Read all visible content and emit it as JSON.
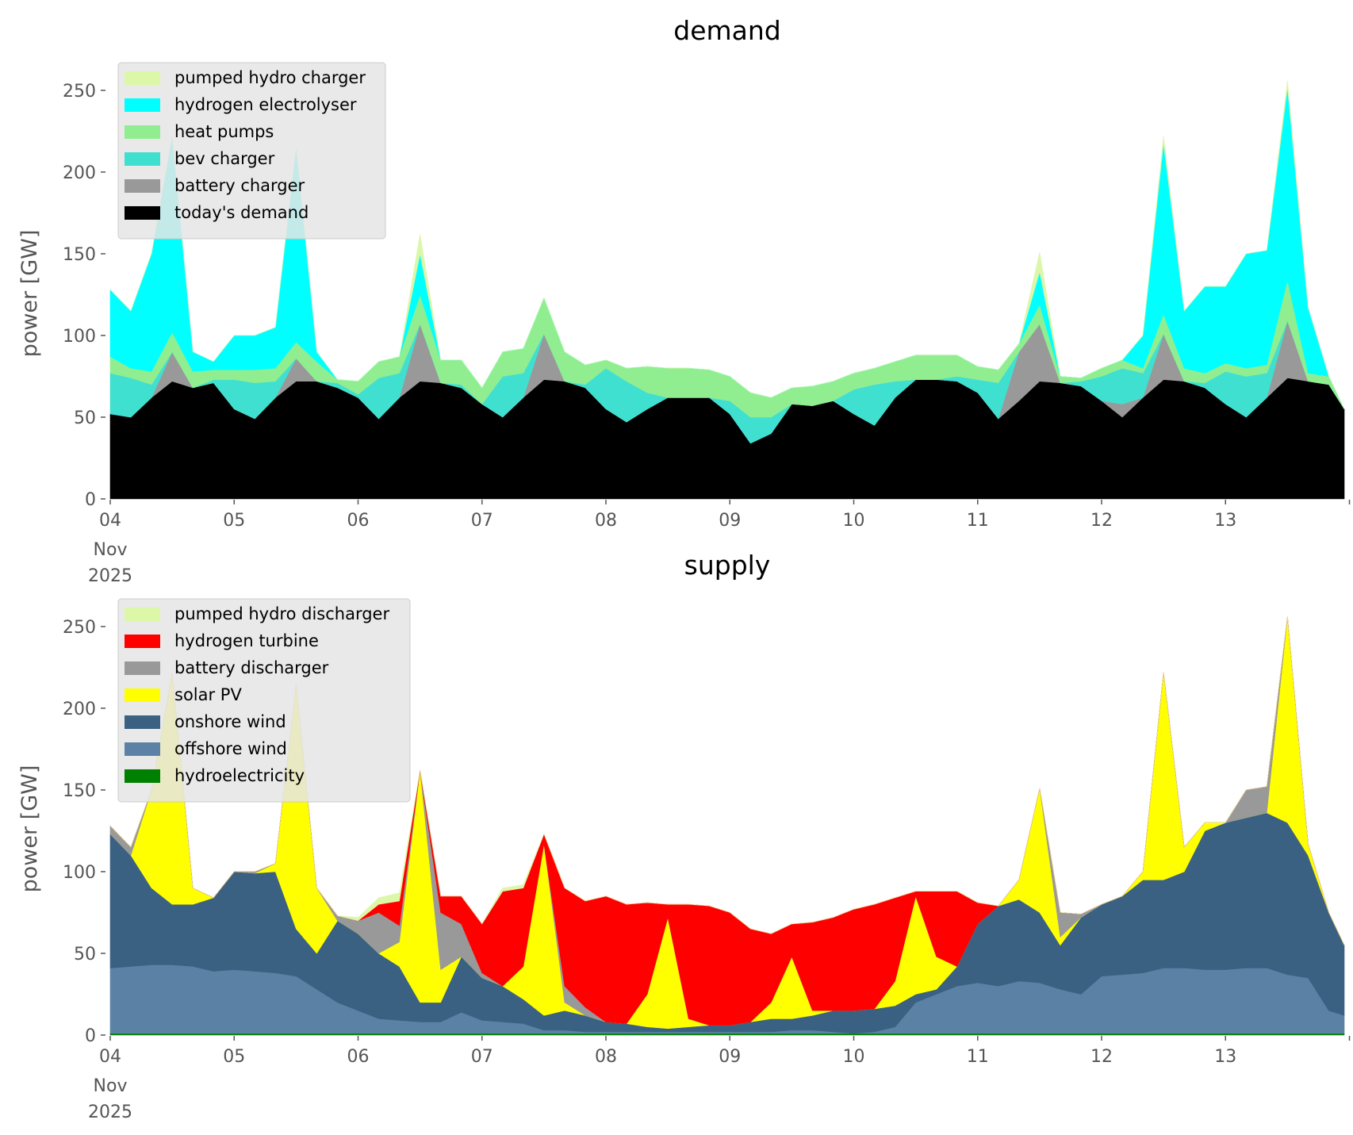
{
  "chart_data": [
    {
      "type": "area",
      "stacked": true,
      "title": "demand",
      "xlabel": "",
      "ylabel": "power [GW]",
      "ylim": [
        0,
        265
      ],
      "yticks": [
        0,
        50,
        100,
        150,
        200,
        250
      ],
      "xlim_hours": [
        0,
        239
      ],
      "xticks": [
        "04",
        "05",
        "06",
        "07",
        "08",
        "09",
        "10",
        "11",
        "12",
        "13",
        ""
      ],
      "xtick_sublabels": [
        "Nov",
        "2025"
      ],
      "grid": false,
      "legend": "top-left",
      "hours": [
        0,
        4,
        8,
        12,
        16,
        20,
        24,
        28,
        32,
        36,
        40,
        44,
        48,
        52,
        56,
        60,
        64,
        68,
        72,
        76,
        80,
        84,
        88,
        92,
        96,
        100,
        104,
        108,
        112,
        116,
        120,
        124,
        128,
        132,
        136,
        140,
        144,
        148,
        152,
        156,
        160,
        164,
        168,
        172,
        176,
        180,
        184,
        188,
        192,
        196,
        200,
        204,
        208,
        212,
        216,
        220,
        224,
        228,
        232,
        236,
        239
      ],
      "series": [
        {
          "name": "today's demand",
          "color": "#000000",
          "values": [
            52,
            50,
            62,
            72,
            68,
            71,
            55,
            49,
            62,
            72,
            72,
            68,
            62,
            49,
            62,
            72,
            71,
            68,
            58,
            50,
            62,
            73,
            72,
            68,
            55,
            47,
            55,
            62,
            62,
            62,
            52,
            34,
            40,
            58,
            57,
            60,
            52,
            45,
            62,
            73,
            73,
            72,
            65,
            49,
            60,
            72,
            71,
            69,
            60,
            50,
            62,
            73,
            72,
            68,
            58,
            50,
            62,
            74,
            72,
            70,
            55
          ]
        },
        {
          "name": "battery charger",
          "color": "#999999",
          "values": [
            0,
            0,
            0,
            18,
            0,
            0,
            0,
            0,
            0,
            14,
            0,
            0,
            0,
            0,
            0,
            35,
            0,
            0,
            0,
            0,
            0,
            28,
            0,
            0,
            0,
            0,
            0,
            0,
            0,
            0,
            0,
            0,
            0,
            0,
            0,
            0,
            0,
            0,
            0,
            0,
            0,
            0,
            0,
            0,
            30,
            35,
            0,
            0,
            0,
            8,
            0,
            28,
            0,
            0,
            0,
            0,
            0,
            35,
            0,
            0,
            0
          ]
        },
        {
          "name": "bev charger",
          "color": "#40e0d0",
          "values": [
            25,
            24,
            8,
            0,
            0,
            2,
            18,
            22,
            10,
            0,
            0,
            3,
            2,
            25,
            15,
            0,
            0,
            2,
            0,
            25,
            15,
            0,
            0,
            2,
            25,
            25,
            10,
            0,
            0,
            0,
            8,
            16,
            10,
            0,
            0,
            0,
            15,
            25,
            10,
            0,
            0,
            3,
            8,
            22,
            0,
            0,
            0,
            3,
            15,
            22,
            15,
            0,
            0,
            3,
            20,
            25,
            15,
            0,
            0,
            0,
            0
          ]
        },
        {
          "name": "heat pumps",
          "color": "#90ee90",
          "values": [
            10,
            6,
            8,
            12,
            10,
            6,
            6,
            8,
            8,
            10,
            12,
            2,
            8,
            10,
            10,
            18,
            14,
            15,
            10,
            15,
            15,
            22,
            18,
            12,
            5,
            8,
            16,
            18,
            18,
            17,
            15,
            15,
            12,
            10,
            12,
            12,
            10,
            10,
            12,
            15,
            15,
            13,
            8,
            8,
            5,
            12,
            4,
            2,
            5,
            5,
            3,
            12,
            8,
            6,
            5,
            5,
            5,
            25,
            5,
            5,
            0
          ]
        },
        {
          "name": "hydrogen electrolyser",
          "color": "#00ffff",
          "values": [
            41,
            35,
            72,
            120,
            12,
            5,
            21,
            21,
            25,
            119,
            6,
            0,
            0,
            0,
            0,
            25,
            0,
            0,
            0,
            0,
            0,
            0,
            0,
            0,
            0,
            0,
            0,
            0,
            0,
            0,
            0,
            0,
            0,
            0,
            0,
            0,
            0,
            0,
            0,
            0,
            0,
            0,
            0,
            0,
            0,
            20,
            0,
            0,
            0,
            0,
            20,
            105,
            35,
            53,
            47,
            70,
            70,
            118,
            40,
            0,
            0
          ]
        },
        {
          "name": "pumped hydro charger",
          "color": "#dcf7a8",
          "values": [
            0,
            0,
            0,
            0,
            0,
            0,
            0,
            0,
            0,
            0,
            0,
            0,
            0,
            0,
            0,
            12,
            0,
            0,
            0,
            0,
            0,
            0,
            0,
            0,
            0,
            0,
            0,
            0,
            0,
            0,
            0,
            0,
            0,
            0,
            0,
            0,
            0,
            0,
            0,
            0,
            0,
            0,
            0,
            0,
            0,
            12,
            0,
            0,
            0,
            0,
            0,
            4,
            0,
            0,
            0,
            0,
            0,
            4,
            0,
            0,
            0
          ]
        }
      ]
    },
    {
      "type": "area",
      "stacked": true,
      "title": "supply",
      "xlabel": "",
      "ylabel": "power [GW]",
      "ylim": [
        0,
        265
      ],
      "yticks": [
        0,
        50,
        100,
        150,
        200,
        250
      ],
      "xlim_hours": [
        0,
        239
      ],
      "xticks": [
        "04",
        "05",
        "06",
        "07",
        "08",
        "09",
        "10",
        "11",
        "12",
        "13",
        ""
      ],
      "xtick_sublabels": [
        "Nov",
        "2025"
      ],
      "grid": false,
      "legend": "top-left",
      "hours": [
        0,
        4,
        8,
        12,
        16,
        20,
        24,
        28,
        32,
        36,
        40,
        44,
        48,
        52,
        56,
        60,
        64,
        68,
        72,
        76,
        80,
        84,
        88,
        92,
        96,
        100,
        104,
        108,
        112,
        116,
        120,
        124,
        128,
        132,
        136,
        140,
        144,
        148,
        152,
        156,
        160,
        164,
        168,
        172,
        176,
        180,
        184,
        188,
        192,
        196,
        200,
        204,
        208,
        212,
        216,
        220,
        224,
        228,
        232,
        236,
        239
      ],
      "series": [
        {
          "name": "hydroelectricity",
          "color": "#008000",
          "values": [
            1,
            1,
            1,
            1,
            1,
            1,
            1,
            1,
            1,
            1,
            1,
            1,
            1,
            1,
            1,
            1,
            1,
            1,
            1,
            1,
            1,
            1,
            1,
            1,
            1,
            1,
            1,
            1,
            1,
            1,
            1,
            1,
            1,
            1,
            1,
            1,
            1,
            1,
            1,
            1,
            1,
            1,
            1,
            1,
            1,
            1,
            1,
            1,
            1,
            1,
            1,
            1,
            1,
            1,
            1,
            1,
            1,
            1,
            1,
            1,
            1
          ]
        },
        {
          "name": "offshore wind",
          "color": "#5b82a5",
          "values": [
            40,
            41,
            42,
            42,
            41,
            38,
            39,
            38,
            37,
            35,
            27,
            19,
            14,
            9,
            8,
            7,
            7,
            13,
            8,
            7,
            6,
            2,
            2,
            1,
            1,
            1,
            1,
            1,
            1,
            1,
            1,
            1,
            1,
            2,
            2,
            1,
            0,
            1,
            4,
            19,
            24,
            29,
            31,
            29,
            32,
            31,
            27,
            24,
            35,
            36,
            37,
            40,
            40,
            39,
            39,
            40,
            40,
            36,
            34,
            14,
            11
          ]
        },
        {
          "name": "onshore wind",
          "color": "#3b6182",
          "values": [
            82,
            68,
            47,
            37,
            38,
            45,
            60,
            60,
            62,
            29,
            22,
            50,
            47,
            40,
            33,
            12,
            12,
            34,
            26,
            22,
            15,
            9,
            12,
            10,
            6,
            5,
            3,
            2,
            3,
            4,
            4,
            6,
            8,
            7,
            9,
            13,
            14,
            14,
            13,
            5,
            3,
            12,
            36,
            49,
            50,
            43,
            27,
            47,
            44,
            48,
            57,
            54,
            59,
            85,
            90,
            92,
            95,
            93,
            75,
            60,
            43
          ]
        },
        {
          "name": "solar PV",
          "color": "#ffff00",
          "values": [
            0,
            0,
            60,
            142,
            10,
            0,
            0,
            0,
            5,
            150,
            40,
            0,
            0,
            0,
            15,
            142,
            20,
            0,
            0,
            0,
            20,
            105,
            5,
            0,
            0,
            0,
            20,
            68,
            5,
            0,
            0,
            0,
            10,
            38,
            3,
            0,
            0,
            0,
            15,
            60,
            20,
            0,
            0,
            0,
            12,
            76,
            5,
            0,
            0,
            0,
            5,
            127,
            15,
            5,
            0,
            0,
            0,
            126,
            7,
            0,
            0
          ]
        },
        {
          "name": "battery discharger",
          "color": "#999999",
          "values": [
            5,
            5,
            0,
            0,
            0,
            0,
            0,
            1,
            0,
            0,
            0,
            3,
            8,
            25,
            10,
            0,
            35,
            20,
            3,
            0,
            0,
            0,
            10,
            5,
            0,
            0,
            0,
            0,
            0,
            0,
            0,
            0,
            0,
            0,
            0,
            0,
            0,
            0,
            0,
            0,
            0,
            0,
            0,
            0,
            0,
            0,
            15,
            2,
            0,
            0,
            0,
            0,
            0,
            0,
            0,
            17,
            16,
            0,
            0,
            0,
            0
          ]
        },
        {
          "name": "hydrogen turbine",
          "color": "#ff0000",
          "values": [
            0,
            0,
            0,
            0,
            0,
            0,
            0,
            0,
            0,
            0,
            0,
            0,
            0,
            5,
            15,
            0,
            10,
            17,
            30,
            58,
            48,
            6,
            60,
            65,
            77,
            73,
            56,
            8,
            70,
            73,
            69,
            57,
            42,
            20,
            54,
            57,
            62,
            64,
            51,
            3,
            40,
            46,
            13,
            0,
            0,
            0,
            0,
            0,
            0,
            0,
            0,
            0,
            0,
            0,
            0,
            0,
            0,
            0,
            0,
            0,
            0
          ]
        },
        {
          "name": "pumped hydro discharger",
          "color": "#dcf7a8",
          "values": [
            0,
            0,
            0,
            0,
            0,
            0,
            0,
            0,
            0,
            0,
            0,
            0,
            2,
            4,
            5,
            0,
            0,
            0,
            0,
            2,
            2,
            0,
            0,
            0,
            0,
            0,
            0,
            0,
            0,
            0,
            0,
            0,
            0,
            0,
            0,
            0,
            0,
            0,
            0,
            0,
            0,
            0,
            0,
            0,
            0,
            0,
            0,
            0,
            0,
            0,
            0,
            0,
            0,
            0,
            0,
            0,
            0,
            0,
            0,
            0,
            0
          ]
        }
      ]
    }
  ]
}
